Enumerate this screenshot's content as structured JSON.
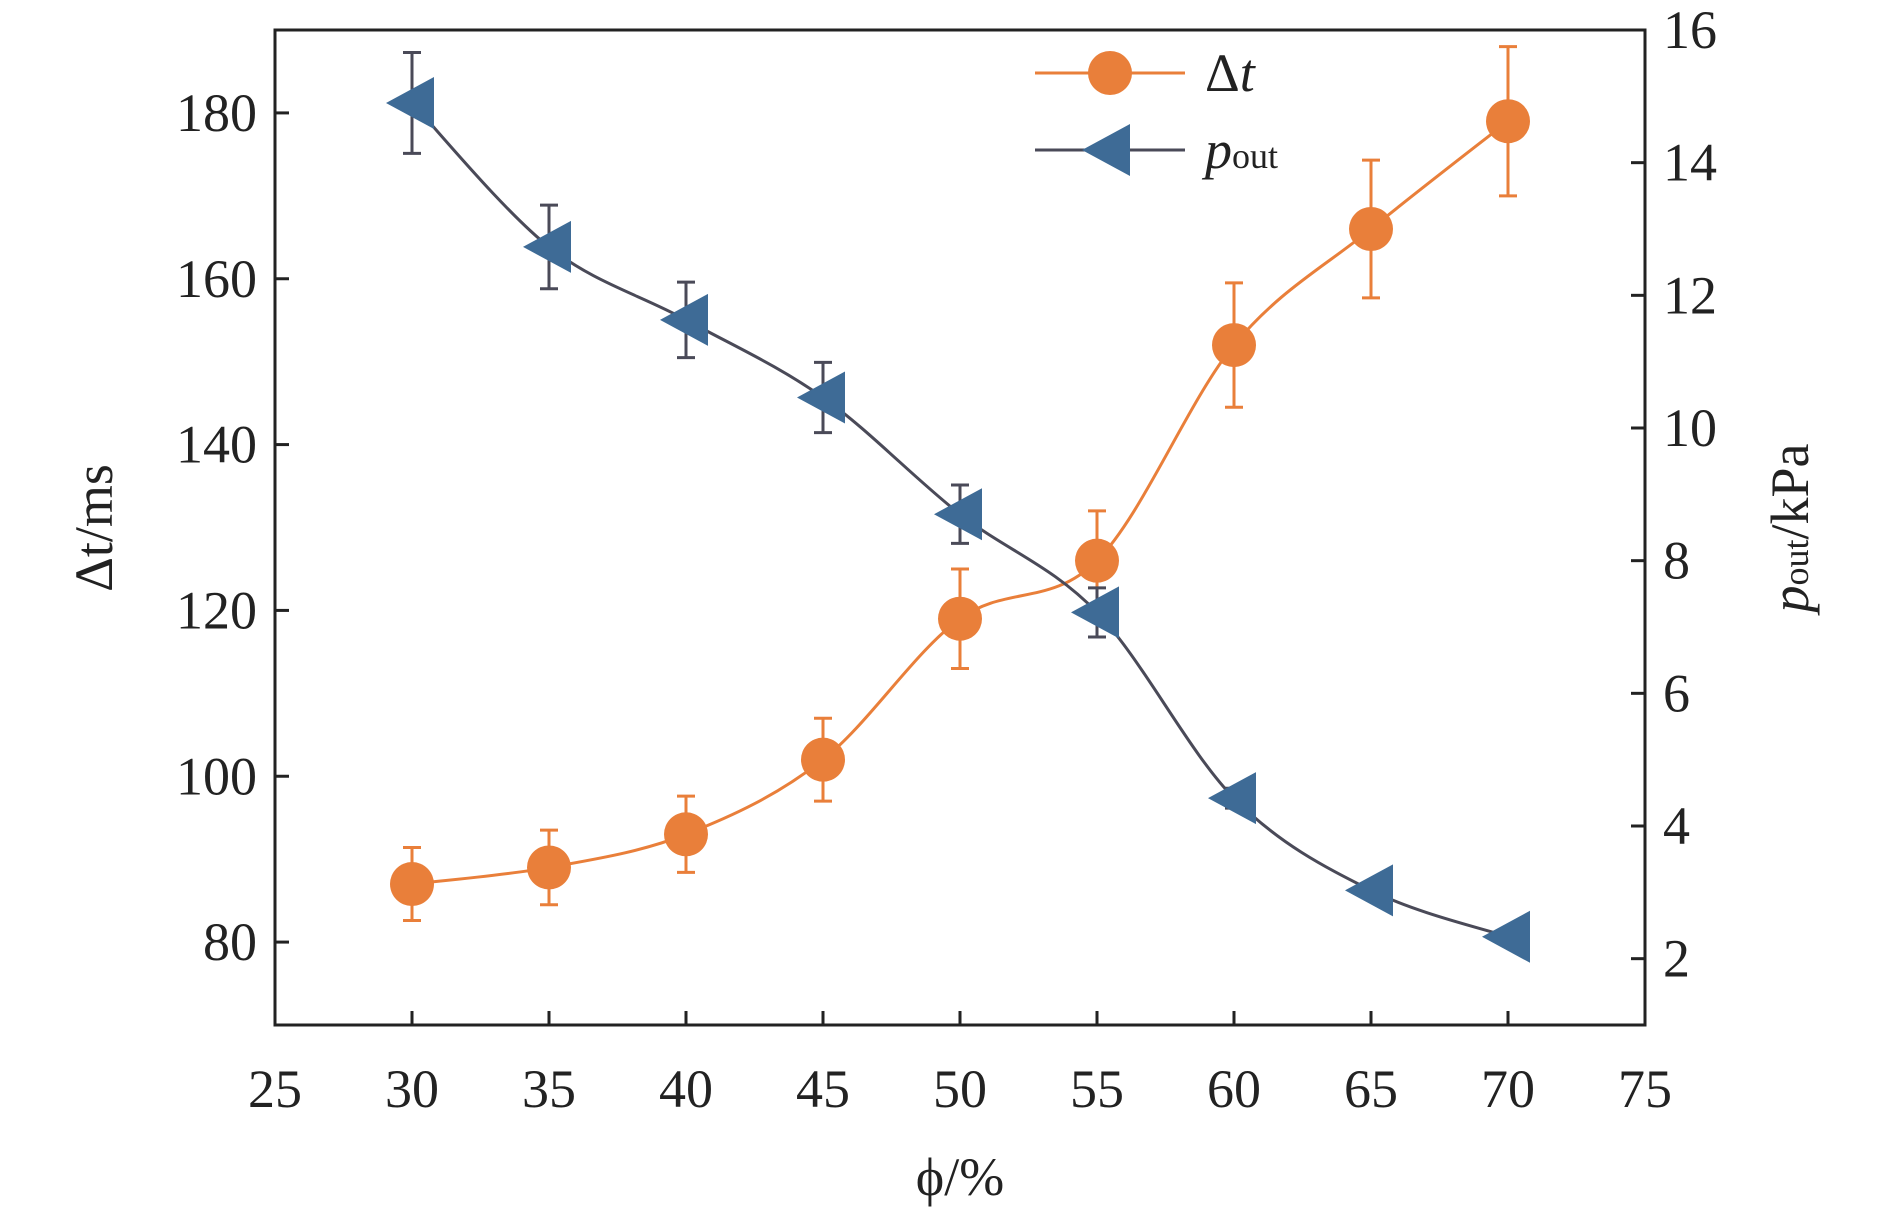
{
  "chart_data": {
    "type": "line",
    "title": "",
    "xlabel": "ϕ/%",
    "ylabel": "Δt/ms",
    "y2label": "p_out/kPa",
    "xlim": [
      25,
      75
    ],
    "ylim": [
      70,
      190
    ],
    "y2lim": [
      1,
      16
    ],
    "xticks": [
      25,
      30,
      35,
      40,
      45,
      50,
      55,
      60,
      65,
      70,
      75
    ],
    "yticks": [
      80,
      100,
      120,
      140,
      160,
      180
    ],
    "y2ticks": [
      2,
      4,
      6,
      8,
      10,
      12,
      14,
      16
    ],
    "grid": false,
    "legend_position": "top-right",
    "x": [
      30,
      35,
      40,
      45,
      50,
      55,
      60,
      65,
      70
    ],
    "series": [
      {
        "name": "Δt",
        "axis": "left",
        "marker": "circle",
        "color": "#E97F3A",
        "line_color": "#E97F3A",
        "values": [
          87,
          89,
          93,
          102,
          119,
          126,
          152,
          166,
          179
        ],
        "errors": [
          4.4,
          4.5,
          4.6,
          5,
          6,
          6,
          7.5,
          8.3,
          9
        ]
      },
      {
        "name": "p_out",
        "axis": "right",
        "marker": "triangle-left",
        "color": "#3E6B96",
        "line_color": "#4A4A58",
        "values": [
          14.9,
          12.73,
          11.63,
          10.46,
          8.7,
          7.22,
          4.42,
          3.03,
          2.33
        ],
        "errors": [
          0.76,
          0.63,
          0.57,
          0.53,
          0.44,
          0.37,
          0.15,
          0.1,
          0.1
        ]
      }
    ],
    "legend": [
      {
        "main": "Δ",
        "italic": "t"
      },
      {
        "italic": "p",
        "sub": "out"
      }
    ],
    "axis_labels": {
      "x_italic": "ϕ",
      "x_rest": "/%",
      "y_main": "Δ",
      "y_italic": "t",
      "y_rest": "/ms",
      "y2_italic": "p",
      "y2_sub": "out",
      "y2_rest": "/kPa"
    }
  }
}
